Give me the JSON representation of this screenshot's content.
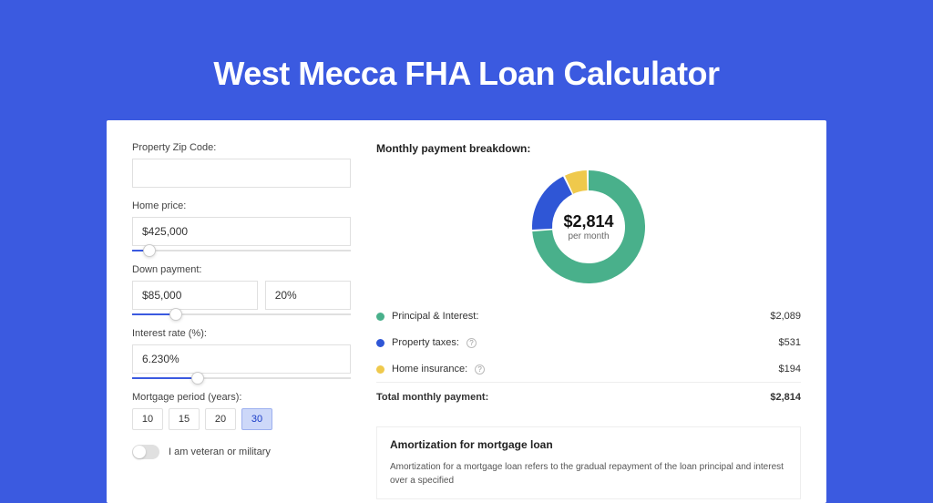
{
  "colors": {
    "page_bg": "#3b5ae0",
    "card_bg": "#ffffff",
    "accent": "#3b5ae0",
    "green": "#49b08b",
    "blue": "#2f56d6",
    "yellow": "#efc94c"
  },
  "hero": {
    "title": "West Mecca FHA Loan Calculator"
  },
  "form": {
    "zip_label": "Property Zip Code:",
    "zip_value": "",
    "home_price_label": "Home price:",
    "home_price_value": "$425,000",
    "home_price_slider_pct": 8,
    "down_payment_label": "Down payment:",
    "down_payment_value": "$85,000",
    "down_payment_pct_value": "20%",
    "down_payment_slider_pct": 20,
    "interest_label": "Interest rate (%):",
    "interest_value": "6.230%",
    "interest_slider_pct": 30,
    "period_label": "Mortgage period (years):",
    "periods": [
      {
        "label": "10",
        "active": false
      },
      {
        "label": "15",
        "active": false
      },
      {
        "label": "20",
        "active": false
      },
      {
        "label": "30",
        "active": true
      }
    ],
    "veteran_label": "I am veteran or military",
    "veteran_on": false
  },
  "breakdown": {
    "title": "Monthly payment breakdown:",
    "center_amount": "$2,814",
    "center_sub": "per month",
    "donut": {
      "slices": [
        {
          "color": "#49b08b",
          "value": 2089
        },
        {
          "color": "#2f56d6",
          "value": 531
        },
        {
          "color": "#efc94c",
          "value": 194
        }
      ],
      "thickness": 22
    },
    "rows": [
      {
        "dot": "#49b08b",
        "label": "Principal & Interest:",
        "info": false,
        "amount": "$2,089"
      },
      {
        "dot": "#2f56d6",
        "label": "Property taxes:",
        "info": true,
        "amount": "$531"
      },
      {
        "dot": "#efc94c",
        "label": "Home insurance:",
        "info": true,
        "amount": "$194"
      }
    ],
    "total_label": "Total monthly payment:",
    "total_amount": "$2,814"
  },
  "amortization": {
    "title": "Amortization for mortgage loan",
    "text": "Amortization for a mortgage loan refers to the gradual repayment of the loan principal and interest over a specified"
  }
}
